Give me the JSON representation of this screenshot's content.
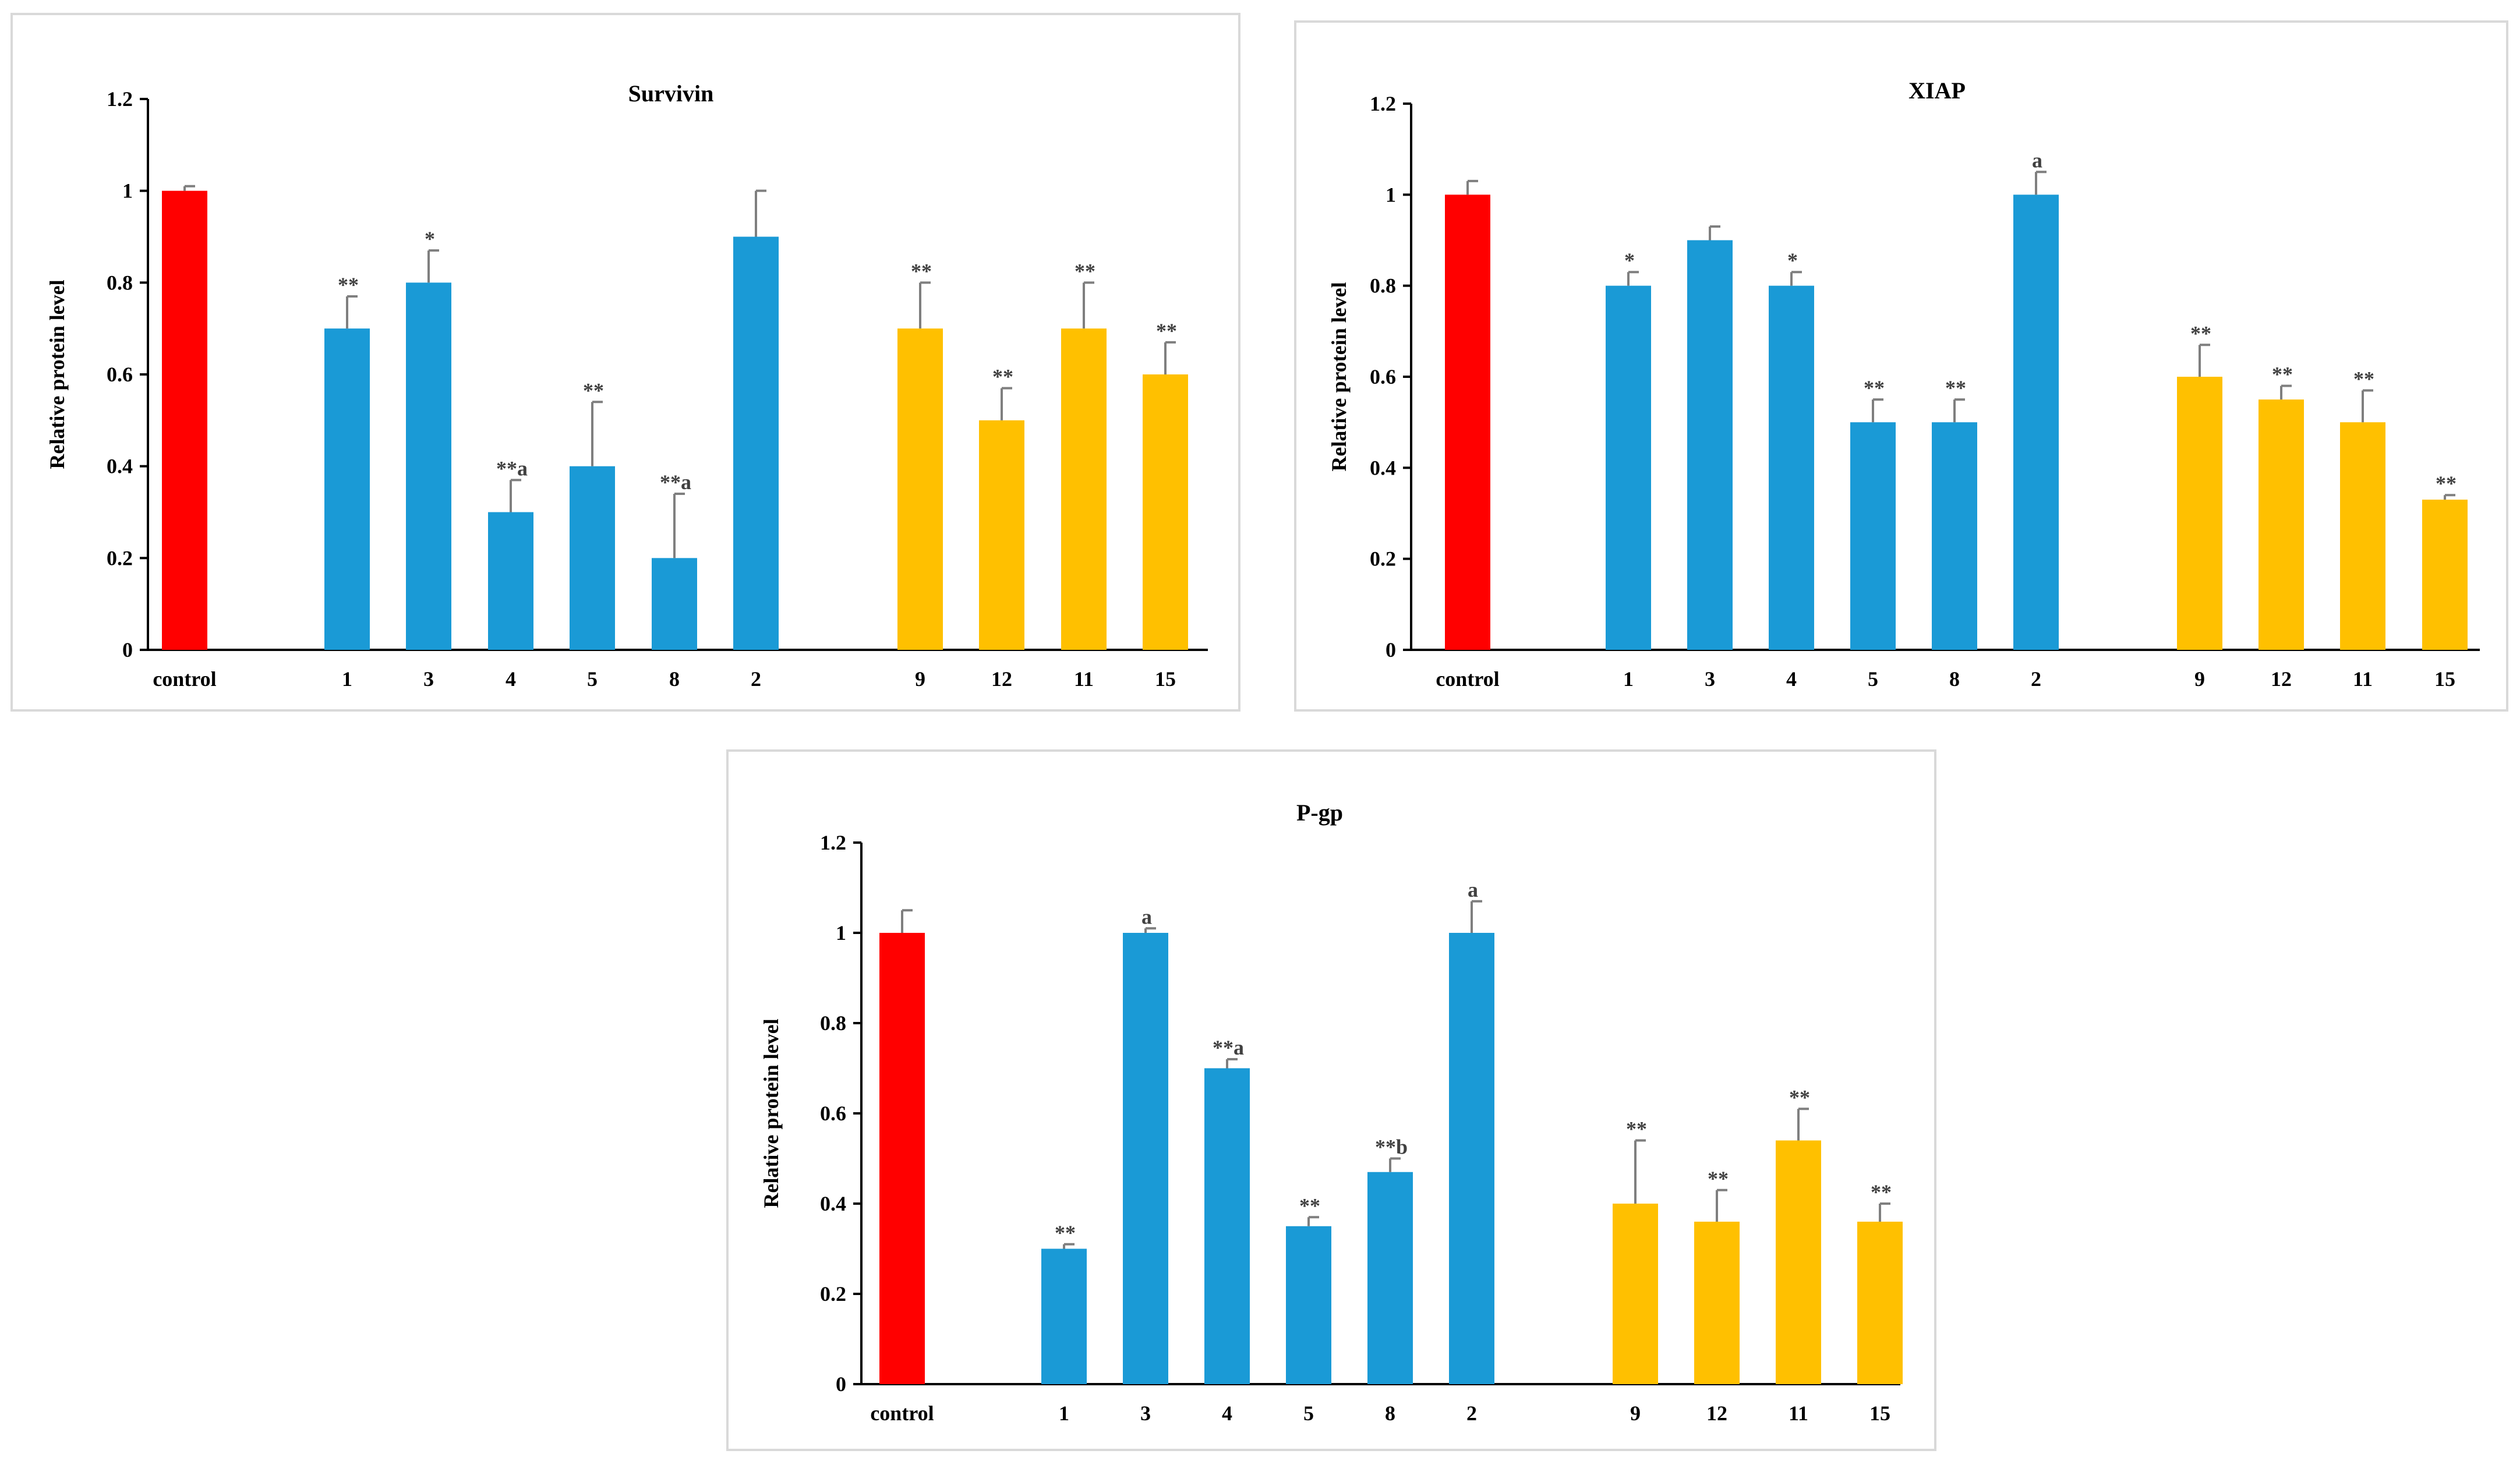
{
  "figure": {
    "colors": {
      "control": "#ff0000",
      "blue": "#1a9ad6",
      "yellow": "#ffc000",
      "axis": "#000000",
      "error": "#7f7f7f"
    }
  },
  "chart_data": [
    {
      "id": "survivin",
      "type": "bar",
      "title": "Survivin",
      "xlabel": "",
      "ylabel": "Relative protein level",
      "ylim": [
        0,
        1.2
      ],
      "yticks": [
        "0",
        "0.2",
        "0.4",
        "0.6",
        "0.8",
        "1",
        "1.2"
      ],
      "categories": [
        "control",
        "1",
        "3",
        "4",
        "5",
        "8",
        "2",
        "9",
        "12",
        "11",
        "15"
      ],
      "groups": [
        "control",
        "blue",
        "blue",
        "blue",
        "blue",
        "blue",
        "blue",
        "yellow",
        "yellow",
        "yellow",
        "yellow"
      ],
      "values": [
        1.0,
        0.7,
        0.8,
        0.3,
        0.4,
        0.2,
        0.9,
        0.7,
        0.5,
        0.7,
        0.6
      ],
      "errors": [
        0.01,
        0.07,
        0.07,
        0.07,
        0.14,
        0.14,
        0.1,
        0.1,
        0.07,
        0.1,
        0.07
      ],
      "annotations": [
        "",
        "**",
        "*",
        "**a",
        "**",
        "**a",
        "",
        "**",
        "**",
        "**",
        "**"
      ]
    },
    {
      "id": "xiap",
      "type": "bar",
      "title": "XIAP",
      "xlabel": "",
      "ylabel": "Relative protein level",
      "ylim": [
        0,
        1.2
      ],
      "yticks": [
        "0",
        "0.2",
        "0.4",
        "0.6",
        "0.8",
        "1",
        "1.2"
      ],
      "categories": [
        "control",
        "1",
        "3",
        "4",
        "5",
        "8",
        "2",
        "9",
        "12",
        "11",
        "15"
      ],
      "groups": [
        "control",
        "blue",
        "blue",
        "blue",
        "blue",
        "blue",
        "blue",
        "yellow",
        "yellow",
        "yellow",
        "yellow"
      ],
      "values": [
        1.0,
        0.8,
        0.9,
        0.8,
        0.5,
        0.5,
        1.0,
        0.6,
        0.55,
        0.5,
        0.33
      ],
      "errors": [
        0.03,
        0.03,
        0.03,
        0.03,
        0.05,
        0.05,
        0.05,
        0.07,
        0.03,
        0.07,
        0.01
      ],
      "annotations": [
        "",
        "*",
        "",
        "*",
        "**",
        "**",
        "a",
        "**",
        "**",
        "**",
        "**"
      ]
    },
    {
      "id": "pgp",
      "type": "bar",
      "title": "P-gp",
      "xlabel": "",
      "ylabel": "Relative protein level",
      "ylim": [
        0,
        1.2
      ],
      "yticks": [
        "0",
        "0.2",
        "0.4",
        "0.6",
        "0.8",
        "1",
        "1.2"
      ],
      "categories": [
        "control",
        "1",
        "3",
        "4",
        "5",
        "8",
        "2",
        "9",
        "12",
        "11",
        "15"
      ],
      "groups": [
        "control",
        "blue",
        "blue",
        "blue",
        "blue",
        "blue",
        "blue",
        "yellow",
        "yellow",
        "yellow",
        "yellow"
      ],
      "values": [
        1.0,
        0.3,
        1.0,
        0.7,
        0.35,
        0.47,
        1.0,
        0.4,
        0.36,
        0.54,
        0.36
      ],
      "errors": [
        0.05,
        0.01,
        0.01,
        0.02,
        0.02,
        0.03,
        0.07,
        0.14,
        0.07,
        0.07,
        0.04
      ],
      "annotations": [
        "",
        "**",
        "a",
        "**a",
        "**",
        "**b",
        "a",
        "**",
        "**",
        "**",
        "**"
      ]
    }
  ]
}
